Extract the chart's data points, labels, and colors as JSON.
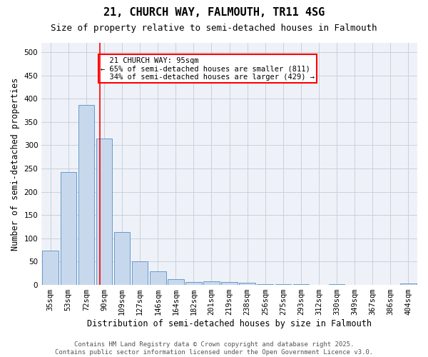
{
  "title_line1": "21, CHURCH WAY, FALMOUTH, TR11 4SG",
  "title_line2": "Size of property relative to semi-detached houses in Falmouth",
  "xlabel": "Distribution of semi-detached houses by size in Falmouth",
  "ylabel": "Number of semi-detached properties",
  "bar_color": "#c8d8ec",
  "bar_edge_color": "#6699cc",
  "categories": [
    "35sqm",
    "53sqm",
    "72sqm",
    "90sqm",
    "109sqm",
    "127sqm",
    "146sqm",
    "164sqm",
    "182sqm",
    "201sqm",
    "219sqm",
    "238sqm",
    "256sqm",
    "275sqm",
    "293sqm",
    "312sqm",
    "330sqm",
    "349sqm",
    "367sqm",
    "386sqm",
    "404sqm"
  ],
  "values": [
    73,
    242,
    387,
    315,
    113,
    50,
    29,
    13,
    7,
    8,
    7,
    5,
    2,
    1,
    1,
    0,
    1,
    0,
    0,
    0,
    3
  ],
  "property_label": "21 CHURCH WAY: 95sqm",
  "pct_smaller": 65,
  "count_smaller": 811,
  "pct_larger": 34,
  "count_larger": 429,
  "vline_x_index": 2.75,
  "ylim": [
    0,
    520
  ],
  "yticks": [
    0,
    50,
    100,
    150,
    200,
    250,
    300,
    350,
    400,
    450,
    500
  ],
  "grid_color": "#c8d0dc",
  "background_color": "#eef2f8",
  "footer_text": "Contains HM Land Registry data © Crown copyright and database right 2025.\nContains public sector information licensed under the Open Government Licence v3.0.",
  "title_fontsize": 11,
  "subtitle_fontsize": 9,
  "label_fontsize": 8.5,
  "tick_fontsize": 7.5,
  "annotation_fontsize": 7.5,
  "footer_fontsize": 6.5
}
